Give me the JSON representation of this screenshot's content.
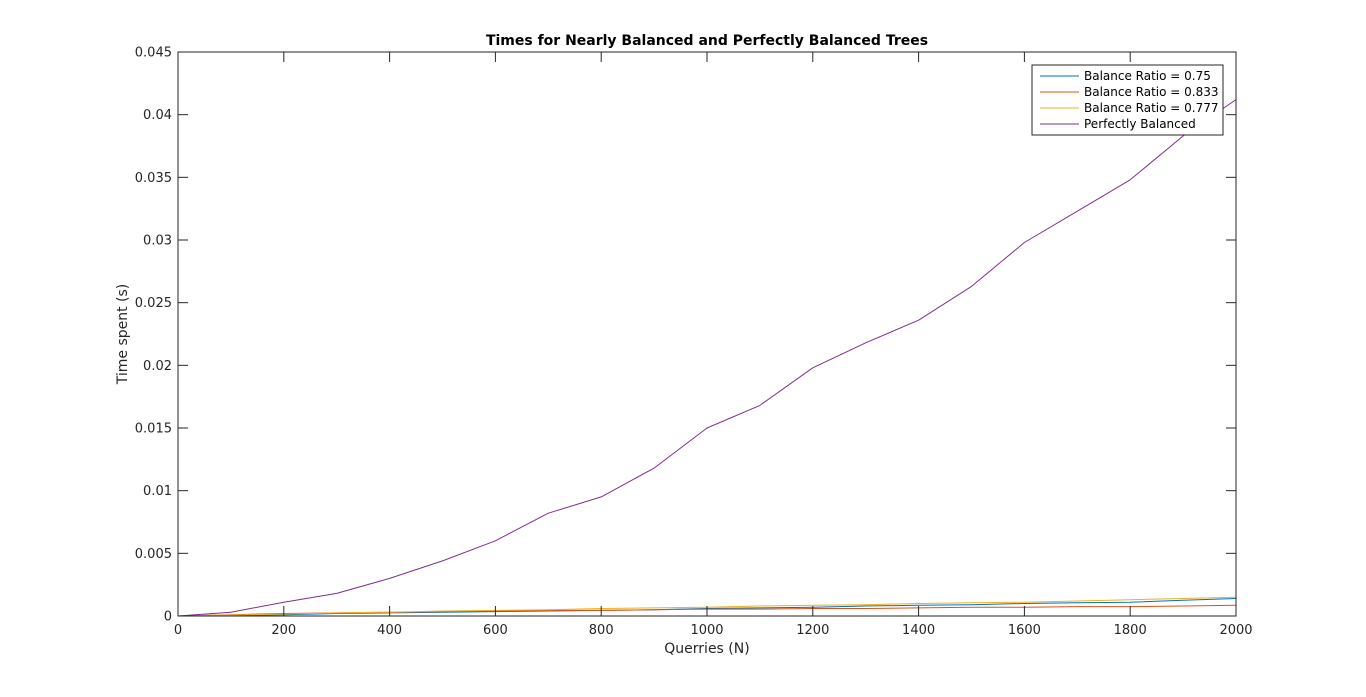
{
  "chart_data": {
    "type": "line",
    "title": "Times for Nearly Balanced and Perfectly Balanced Trees",
    "xlabel": "Querries (N)",
    "ylabel": "Time spent (s)",
    "xlim": [
      0,
      2000
    ],
    "ylim": [
      0,
      0.045
    ],
    "x_ticks": [
      0,
      200,
      400,
      600,
      800,
      1000,
      1200,
      1400,
      1600,
      1800,
      2000
    ],
    "x_tick_labels": [
      "0",
      "200",
      "400",
      "600",
      "800",
      "1000",
      "1200",
      "1400",
      "1600",
      "1800",
      "2000"
    ],
    "y_ticks": [
      0,
      0.005,
      0.01,
      0.015,
      0.02,
      0.025,
      0.03,
      0.035,
      0.04,
      0.045
    ],
    "y_tick_labels": [
      "0",
      "0.005",
      "0.01",
      "0.015",
      "0.02",
      "0.025",
      "0.03",
      "0.035",
      "0.04",
      "0.045"
    ],
    "grid": false,
    "legend_position": "top-right",
    "x": [
      0,
      100,
      200,
      300,
      400,
      500,
      600,
      700,
      800,
      900,
      1000,
      1100,
      1200,
      1300,
      1400,
      1500,
      1600,
      1700,
      1800,
      1900,
      2000
    ],
    "series": [
      {
        "name": "Balance Ratio = 0.75",
        "color": "#0072BD",
        "values": [
          0,
          5e-05,
          0.0001,
          0.0002,
          0.00025,
          0.0003,
          0.00035,
          0.0004,
          0.00045,
          0.0005,
          0.0006,
          0.00065,
          0.0007,
          0.0008,
          0.00085,
          0.0009,
          0.001,
          0.00105,
          0.0011,
          0.00125,
          0.0014
        ]
      },
      {
        "name": "Balance Ratio = 0.833",
        "color": "#D95319",
        "values": [
          0,
          0.0001,
          0.0002,
          0.00025,
          0.0003,
          0.00035,
          0.0004,
          0.00045,
          0.00045,
          0.0005,
          0.00055,
          0.00055,
          0.0006,
          0.0006,
          0.00065,
          0.0007,
          0.0007,
          0.00075,
          0.00075,
          0.0008,
          0.00085
        ]
      },
      {
        "name": "Balance Ratio = 0.777",
        "color": "#EDB120",
        "values": [
          0,
          8e-05,
          0.00015,
          0.00025,
          0.0003,
          0.0004,
          0.00045,
          0.0005,
          0.0006,
          0.00065,
          0.0007,
          0.0008,
          0.00085,
          0.0009,
          0.001,
          0.00105,
          0.0011,
          0.0012,
          0.0013,
          0.0014,
          0.0015
        ]
      },
      {
        "name": "Perfectly Balanced",
        "color": "#7E2F8E",
        "values": [
          0,
          0.0003,
          0.0011,
          0.0018,
          0.003,
          0.0044,
          0.006,
          0.0082,
          0.0095,
          0.0118,
          0.015,
          0.0168,
          0.0198,
          0.0218,
          0.0236,
          0.0263,
          0.0298,
          0.0323,
          0.0348,
          0.0383,
          0.0412
        ]
      }
    ]
  }
}
